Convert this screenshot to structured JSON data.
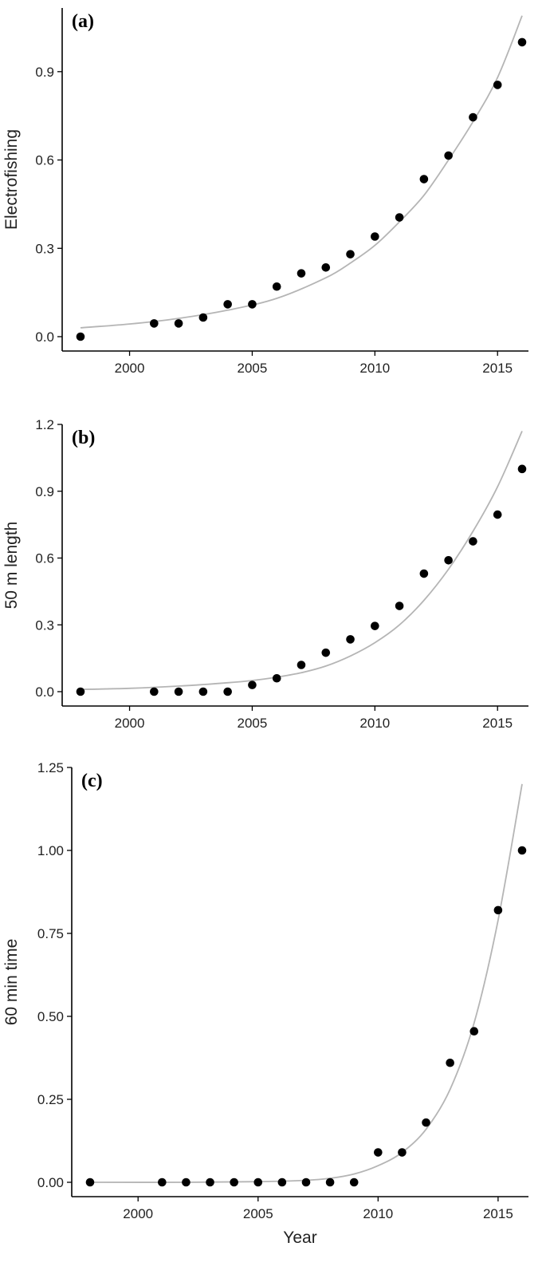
{
  "chart_data": [
    {
      "type": "scatter",
      "panel_label": "(a)",
      "xlabel": "",
      "ylabel": "Electrofishing",
      "xlim": [
        1998,
        2016
      ],
      "ylim": [
        0.0,
        1.1
      ],
      "xticks": [
        2000,
        2005,
        2010,
        2015
      ],
      "yticks": [
        0.0,
        0.3,
        0.6,
        0.9
      ],
      "ytick_labels": [
        "0.0",
        "0.3",
        "0.6",
        "0.9"
      ],
      "x": [
        1998,
        2001,
        2002,
        2003,
        2004,
        2005,
        2006,
        2007,
        2008,
        2009,
        2010,
        2011,
        2012,
        2013,
        2014,
        2015,
        2016
      ],
      "y": [
        0.0,
        0.045,
        0.045,
        0.065,
        0.11,
        0.11,
        0.17,
        0.215,
        0.235,
        0.28,
        0.34,
        0.405,
        0.535,
        0.615,
        0.745,
        0.855,
        1.0
      ],
      "fit_line": {
        "x": [
          1998,
          2000,
          2002,
          2004,
          2006,
          2008,
          2009,
          2010,
          2011,
          2012,
          2013,
          2014,
          2015,
          2016
        ],
        "y": [
          0.03,
          0.043,
          0.062,
          0.09,
          0.13,
          0.2,
          0.25,
          0.31,
          0.39,
          0.48,
          0.6,
          0.73,
          0.88,
          1.09
        ]
      },
      "grid": false
    },
    {
      "type": "scatter",
      "panel_label": "(b)",
      "xlabel": "",
      "ylabel": "50 m length",
      "xlim": [
        1998,
        2016
      ],
      "ylim": [
        0.0,
        1.2
      ],
      "xticks": [
        2000,
        2005,
        2010,
        2015
      ],
      "yticks": [
        0.0,
        0.3,
        0.6,
        0.9,
        1.2
      ],
      "ytick_labels": [
        "0.0",
        "0.3",
        "0.6",
        "0.9",
        "1.2"
      ],
      "x": [
        1998,
        2001,
        2002,
        2003,
        2004,
        2005,
        2006,
        2007,
        2008,
        2009,
        2010,
        2011,
        2012,
        2013,
        2014,
        2015,
        2016
      ],
      "y": [
        0.0,
        0.0,
        0.0,
        0.0,
        0.0,
        0.03,
        0.06,
        0.12,
        0.175,
        0.235,
        0.295,
        0.385,
        0.53,
        0.59,
        0.675,
        0.795,
        1.0
      ],
      "fit_line": {
        "x": [
          1998,
          2000,
          2002,
          2004,
          2005,
          2006,
          2007,
          2008,
          2009,
          2010,
          2011,
          2012,
          2013,
          2014,
          2015,
          2016
        ],
        "y": [
          0.01,
          0.015,
          0.025,
          0.04,
          0.05,
          0.065,
          0.085,
          0.115,
          0.16,
          0.22,
          0.3,
          0.41,
          0.55,
          0.72,
          0.92,
          1.17
        ]
      },
      "grid": false
    },
    {
      "type": "scatter",
      "panel_label": "(c)",
      "xlabel": "Year",
      "ylabel": "60 min time",
      "xlim": [
        1998,
        2016
      ],
      "ylim": [
        0.0,
        1.25
      ],
      "xticks": [
        2000,
        2005,
        2010,
        2015
      ],
      "yticks": [
        0.0,
        0.25,
        0.5,
        0.75,
        1.0,
        1.25
      ],
      "ytick_labels": [
        "0.00",
        "0.25",
        "0.50",
        "0.75",
        "1.00",
        "1.25"
      ],
      "x": [
        1998,
        2001,
        2002,
        2003,
        2004,
        2005,
        2006,
        2007,
        2008,
        2009,
        2010,
        2011,
        2012,
        2013,
        2014,
        2015,
        2016
      ],
      "y": [
        0.0,
        0.0,
        0.0,
        0.0,
        0.0,
        0.0,
        0.0,
        0.0,
        0.0,
        0.0,
        0.09,
        0.09,
        0.18,
        0.36,
        0.455,
        0.82,
        1.0
      ],
      "fit_line": {
        "x": [
          1998,
          2002,
          2005,
          2007,
          2008,
          2009,
          2010,
          2011,
          2012,
          2013,
          2014,
          2015,
          2016
        ],
        "y": [
          0.0,
          0.0,
          0.002,
          0.006,
          0.012,
          0.025,
          0.05,
          0.09,
          0.16,
          0.28,
          0.48,
          0.79,
          1.2
        ]
      },
      "grid": false
    }
  ]
}
